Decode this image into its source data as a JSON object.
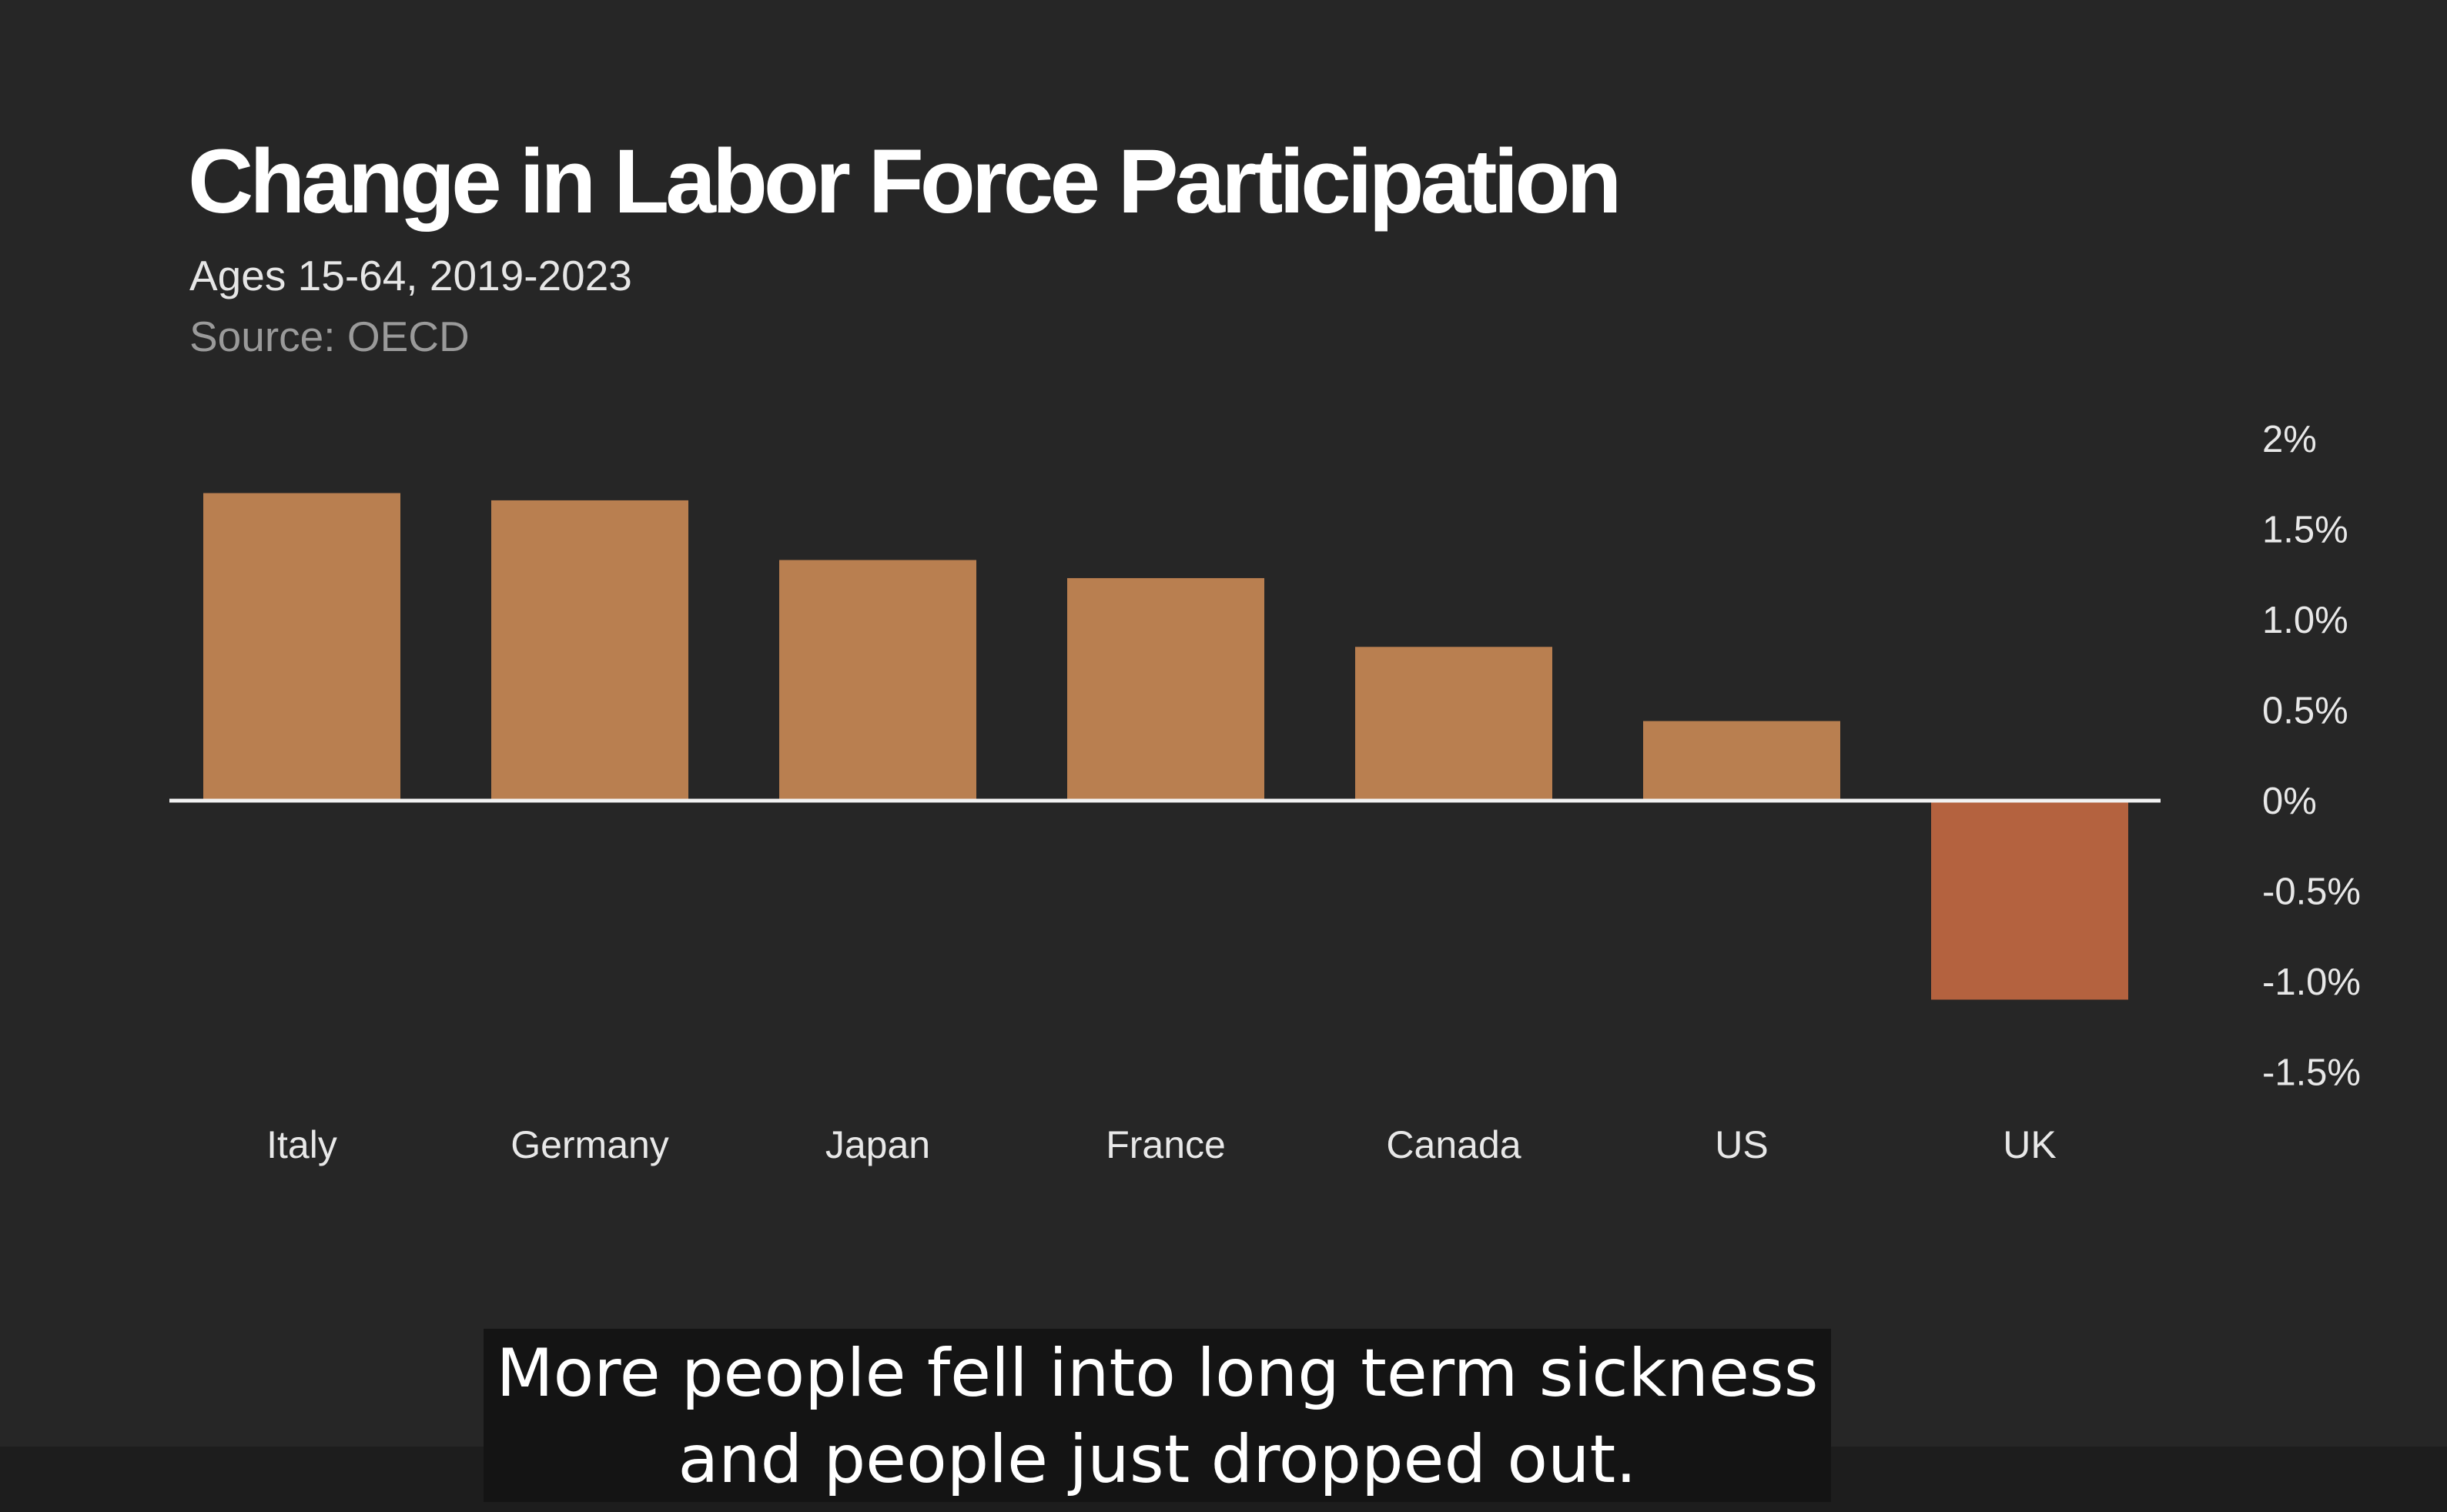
{
  "colors": {
    "background": "#262626",
    "positive_bar": "#b97f50",
    "negative_bar": "#b4623f",
    "baseline": "#f2f2f2",
    "title": "#ffffff",
    "subtitle": "#e6e6e6",
    "source": "#9a9a9a",
    "tick_labels": "#e8e8e8",
    "category_labels": "#e8e8e8"
  },
  "chart_data": {
    "type": "bar",
    "title": "Change in Labor Force Participation",
    "subtitle": "Ages 15-64, 2019-2023",
    "source": "Source: OECD",
    "categories": [
      "Italy",
      "Germany",
      "Japan",
      "France",
      "Canada",
      "US",
      "UK"
    ],
    "values": [
      1.7,
      1.66,
      1.33,
      1.23,
      0.85,
      0.44,
      -1.1
    ],
    "ylim": [
      -1.5,
      2
    ],
    "yticks": [
      2,
      1.5,
      1.0,
      0.5,
      0,
      -0.5,
      -1.0,
      -1.5
    ],
    "ytick_labels": [
      "2%",
      "1.5%",
      "1.0%",
      "0.5%",
      "0%",
      "-0.5%",
      "-1.0%",
      "-1.5%"
    ],
    "y_axis_side": "right",
    "grid": false,
    "legend": "none"
  },
  "caption": {
    "line1": "More people fell into long term sickness",
    "line2": "and people just dropped out."
  }
}
